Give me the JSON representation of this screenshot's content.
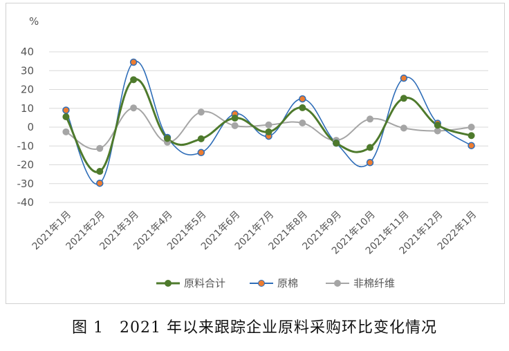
{
  "chart_data": {
    "type": "line",
    "smooth": true,
    "ylabel": "%",
    "ylim": [
      -40,
      40
    ],
    "yticks": [
      40,
      30,
      20,
      10,
      0,
      -10,
      -20,
      -30,
      -40
    ],
    "grid": true,
    "legend_position": "bottom",
    "categories": [
      "2021年1月",
      "2021年2月",
      "2021年3月",
      "2021年4月",
      "2021年5月",
      "2021年6月",
      "2021年7月",
      "2021年8月",
      "2021年9月",
      "2021年10月",
      "2021年11月",
      "2021年12月",
      "2022年1月"
    ],
    "series": [
      {
        "name": "原料合计",
        "color": "#4e7a2c",
        "marker_color": "#4e7a2c",
        "values": [
          5.5,
          -23.5,
          25.2,
          -6.0,
          -6.2,
          4.8,
          -2.5,
          10.3,
          -8.5,
          -10.8,
          15.3,
          1.0,
          -4.5
        ]
      },
      {
        "name": "原棉",
        "color": "#2e6db8",
        "marker_color": "#ed7d31",
        "values": [
          9.0,
          -29.8,
          34.5,
          -5.5,
          -13.5,
          7.0,
          -4.8,
          15.0,
          -8.5,
          -18.8,
          26.0,
          2.0,
          -9.8
        ]
      },
      {
        "name": "非棉纤维",
        "color": "#a5a5a5",
        "marker_color": "#a5a5a5",
        "values": [
          -2.5,
          -11.3,
          10.2,
          -8.0,
          8.0,
          0.8,
          1.2,
          2.2,
          -7.0,
          4.3,
          -0.5,
          -2.0,
          0.0
        ]
      }
    ]
  },
  "caption": "图 1　2021 年以来跟踪企业原料采购环比变化情况"
}
